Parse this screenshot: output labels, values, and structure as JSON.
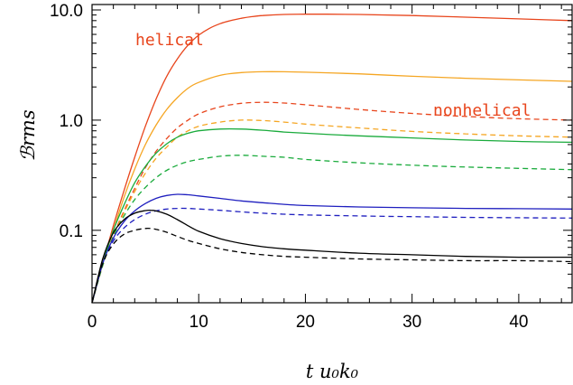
{
  "chart_data": {
    "type": "line",
    "xlabel": "t  u₀k₀",
    "ylabel": "ℬrms",
    "xlim": [
      0,
      45
    ],
    "ylim": [
      0.022,
      11.2
    ],
    "yscale": "log",
    "grid": false,
    "x_ticks": [
      0,
      10,
      20,
      30,
      40
    ],
    "y_ticks": [
      {
        "value": 0.1,
        "label": "0.1"
      },
      {
        "value": 1.0,
        "label": "1.0"
      },
      {
        "value": 10.0,
        "label": "10.0"
      }
    ],
    "annotations": [
      {
        "text": "helical",
        "color": "#e8451c"
      },
      {
        "text": "nonhelical",
        "color": "#e8451c"
      }
    ],
    "series": [
      {
        "color": "#e8451c",
        "style": "solid",
        "x": [
          0,
          1,
          2,
          3,
          4,
          5,
          6,
          7,
          8,
          9,
          10,
          11,
          12,
          13,
          14,
          15,
          16,
          18,
          20,
          22,
          25,
          30,
          35,
          40,
          45
        ],
        "y": [
          0.022,
          0.05,
          0.11,
          0.23,
          0.46,
          0.88,
          1.55,
          2.5,
          3.6,
          4.8,
          5.9,
          6.8,
          7.5,
          8.0,
          8.4,
          8.7,
          8.9,
          9.1,
          9.15,
          9.15,
          9.1,
          8.9,
          8.6,
          8.3,
          8.0
        ]
      },
      {
        "color": "#f5a623",
        "style": "solid",
        "x": [
          0,
          1,
          2,
          3,
          4,
          5,
          6,
          7,
          8,
          9,
          10,
          12,
          14,
          16,
          18,
          20,
          25,
          30,
          35,
          40,
          45
        ],
        "y": [
          0.022,
          0.05,
          0.1,
          0.2,
          0.36,
          0.6,
          0.9,
          1.25,
          1.6,
          1.95,
          2.2,
          2.55,
          2.7,
          2.75,
          2.75,
          2.72,
          2.63,
          2.5,
          2.4,
          2.32,
          2.25
        ]
      },
      {
        "color": "#e8451c",
        "style": "dashed",
        "x": [
          0,
          1,
          2,
          3,
          4,
          5,
          6,
          7,
          8,
          9,
          10,
          12,
          14,
          16,
          18,
          20,
          25,
          30,
          35,
          40,
          45
        ],
        "y": [
          0.022,
          0.048,
          0.09,
          0.15,
          0.24,
          0.37,
          0.52,
          0.68,
          0.85,
          1.0,
          1.14,
          1.32,
          1.42,
          1.45,
          1.43,
          1.38,
          1.25,
          1.15,
          1.08,
          1.03,
          1.0
        ]
      },
      {
        "color": "#f5a623",
        "style": "dashed",
        "x": [
          0,
          1,
          2,
          3,
          4,
          5,
          6,
          7,
          8,
          9,
          10,
          12,
          14,
          16,
          18,
          20,
          25,
          30,
          35,
          40,
          45
        ],
        "y": [
          0.022,
          0.048,
          0.088,
          0.145,
          0.225,
          0.33,
          0.45,
          0.57,
          0.7,
          0.8,
          0.88,
          0.96,
          1.0,
          0.99,
          0.96,
          0.92,
          0.85,
          0.79,
          0.75,
          0.72,
          0.7
        ]
      },
      {
        "color": "#1aab3c",
        "style": "solid",
        "x": [
          0,
          1,
          2,
          3,
          4,
          5,
          6,
          7,
          8,
          9,
          10,
          12,
          14,
          16,
          18,
          20,
          25,
          30,
          35,
          40,
          45
        ],
        "y": [
          0.022,
          0.05,
          0.1,
          0.17,
          0.27,
          0.38,
          0.5,
          0.61,
          0.7,
          0.76,
          0.8,
          0.83,
          0.83,
          0.81,
          0.78,
          0.76,
          0.72,
          0.69,
          0.66,
          0.64,
          0.63
        ]
      },
      {
        "color": "#1aab3c",
        "style": "dashed",
        "x": [
          0,
          1,
          2,
          3,
          4,
          5,
          6,
          7,
          8,
          9,
          10,
          12,
          14,
          16,
          18,
          20,
          25,
          30,
          35,
          40,
          45
        ],
        "y": [
          0.022,
          0.048,
          0.088,
          0.135,
          0.19,
          0.245,
          0.3,
          0.35,
          0.39,
          0.42,
          0.44,
          0.47,
          0.48,
          0.47,
          0.46,
          0.44,
          0.41,
          0.39,
          0.375,
          0.365,
          0.355
        ]
      },
      {
        "color": "#1f1fbf",
        "style": "solid",
        "x": [
          0,
          1,
          2,
          3,
          4,
          5,
          6,
          7,
          8,
          9,
          10,
          12,
          14,
          16,
          18,
          20,
          25,
          30,
          35,
          40,
          45
        ],
        "y": [
          0.022,
          0.05,
          0.085,
          0.12,
          0.15,
          0.175,
          0.195,
          0.207,
          0.212,
          0.21,
          0.205,
          0.195,
          0.185,
          0.178,
          0.172,
          0.168,
          0.163,
          0.16,
          0.158,
          0.157,
          0.156
        ]
      },
      {
        "color": "#1f1fbf",
        "style": "dashed",
        "x": [
          0,
          1,
          2,
          3,
          4,
          5,
          6,
          7,
          8,
          9,
          10,
          12,
          14,
          16,
          18,
          20,
          25,
          30,
          35,
          40,
          45
        ],
        "y": [
          0.022,
          0.05,
          0.08,
          0.105,
          0.125,
          0.14,
          0.15,
          0.156,
          0.158,
          0.158,
          0.156,
          0.152,
          0.147,
          0.143,
          0.14,
          0.138,
          0.135,
          0.133,
          0.131,
          0.13,
          0.129
        ]
      },
      {
        "color": "#000000",
        "style": "solid",
        "x": [
          0,
          1,
          2,
          3,
          4,
          5,
          5.5,
          6,
          7,
          8,
          9,
          10,
          12,
          14,
          16,
          18,
          20,
          25,
          30,
          35,
          40,
          45
        ],
        "y": [
          0.022,
          0.055,
          0.095,
          0.125,
          0.143,
          0.151,
          0.152,
          0.15,
          0.14,
          0.125,
          0.11,
          0.098,
          0.084,
          0.076,
          0.071,
          0.068,
          0.066,
          0.062,
          0.06,
          0.058,
          0.057,
          0.057
        ]
      },
      {
        "color": "#000000",
        "style": "dashed",
        "x": [
          0,
          1,
          2,
          3,
          4,
          5,
          5.5,
          6,
          7,
          8,
          9,
          10,
          12,
          14,
          16,
          18,
          20,
          25,
          30,
          35,
          40,
          45
        ],
        "y": [
          0.022,
          0.05,
          0.075,
          0.092,
          0.1,
          0.104,
          0.104,
          0.102,
          0.096,
          0.088,
          0.081,
          0.076,
          0.068,
          0.063,
          0.06,
          0.058,
          0.057,
          0.055,
          0.054,
          0.053,
          0.053,
          0.052
        ]
      }
    ]
  }
}
